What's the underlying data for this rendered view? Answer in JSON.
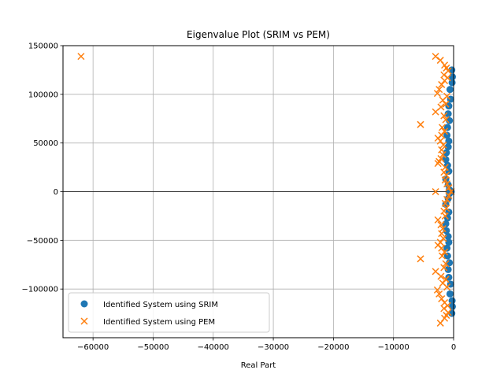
{
  "chart_data": {
    "type": "scatter",
    "title": "Eigenvalue Plot (SRIM vs PEM)",
    "xlabel": "Real Part",
    "ylabel": "",
    "xlim": [
      -65000,
      0
    ],
    "ylim": [
      -150000,
      150000
    ],
    "x_ticks": [
      -60000,
      -50000,
      -40000,
      -30000,
      -20000,
      -10000,
      0
    ],
    "y_ticks": [
      -100000,
      -50000,
      0,
      50000,
      100000,
      150000
    ],
    "x_tick_labels": [
      "−60000",
      "−50000",
      "−40000",
      "−30000",
      "−20000",
      "−10000",
      "0"
    ],
    "y_tick_labels": [
      "−100000",
      "−50000",
      "0",
      "50000",
      "100000",
      "150000"
    ],
    "grid": true,
    "zero_line": true,
    "legend_position": "bottom-left",
    "series": [
      {
        "name": "Identified System using SRIM",
        "marker": "circle",
        "color": "#1f77b4",
        "points": [
          [
            -300,
            125000
          ],
          [
            -300,
            -125000
          ],
          [
            -200,
            118000
          ],
          [
            -200,
            -118000
          ],
          [
            -250,
            112000
          ],
          [
            -250,
            -112000
          ],
          [
            -600,
            105000
          ],
          [
            -600,
            -105000
          ],
          [
            -500,
            95000
          ],
          [
            -500,
            -95000
          ],
          [
            -800,
            88000
          ],
          [
            -800,
            -88000
          ],
          [
            -900,
            80000
          ],
          [
            -900,
            -80000
          ],
          [
            -700,
            73000
          ],
          [
            -700,
            -73000
          ],
          [
            -1000,
            66000
          ],
          [
            -1000,
            -66000
          ],
          [
            -1100,
            58000
          ],
          [
            -1100,
            -58000
          ],
          [
            -800,
            52000
          ],
          [
            -800,
            -52000
          ],
          [
            -900,
            46000
          ],
          [
            -900,
            -46000
          ],
          [
            -1200,
            40000
          ],
          [
            -1200,
            -40000
          ],
          [
            -1300,
            33000
          ],
          [
            -1300,
            -33000
          ],
          [
            -1000,
            27000
          ],
          [
            -1000,
            -27000
          ],
          [
            -800,
            21000
          ],
          [
            -800,
            -21000
          ],
          [
            -1300,
            13000
          ],
          [
            -1300,
            -13000
          ],
          [
            -900,
            7000
          ],
          [
            -900,
            -7000
          ],
          [
            -700,
            2000
          ],
          [
            -700,
            -2000
          ],
          [
            -400,
            0
          ]
        ]
      },
      {
        "name": "Identified System using PEM",
        "marker": "x",
        "color": "#ff7f0e",
        "points": [
          [
            -62000,
            139000
          ],
          [
            -3000,
            139000
          ],
          [
            -2200,
            135000
          ],
          [
            -1500,
            130000
          ],
          [
            -1200,
            127000
          ],
          [
            -900,
            124000
          ],
          [
            -1600,
            120000
          ],
          [
            -1000,
            117000
          ],
          [
            -1500,
            114000
          ],
          [
            -2000,
            110000
          ],
          [
            -2400,
            105000
          ],
          [
            -2700,
            101000
          ],
          [
            -1100,
            98000
          ],
          [
            -1800,
            94000
          ],
          [
            -1300,
            90000
          ],
          [
            -2100,
            87000
          ],
          [
            -3000,
            82000
          ],
          [
            -1600,
            78000
          ],
          [
            -1300,
            74000
          ],
          [
            -5500,
            69000
          ],
          [
            -1900,
            66000
          ],
          [
            -1500,
            62000
          ],
          [
            -2000,
            58000
          ],
          [
            -2600,
            55000
          ],
          [
            -2200,
            52000
          ],
          [
            -1700,
            48000
          ],
          [
            -2000,
            43000
          ],
          [
            -1800,
            38000
          ],
          [
            -2100,
            34000
          ],
          [
            -2400,
            31000
          ],
          [
            -2600,
            29000
          ],
          [
            -1400,
            25000
          ],
          [
            -1600,
            20000
          ],
          [
            -1200,
            17000
          ],
          [
            -1400,
            12000
          ],
          [
            -1100,
            8000
          ],
          [
            -800,
            4000
          ],
          [
            -3000,
            0
          ],
          [
            -400,
            0
          ],
          [
            -2200,
            -135000
          ],
          [
            -1500,
            -130000
          ],
          [
            -1200,
            -127000
          ],
          [
            -900,
            -124000
          ],
          [
            -1600,
            -120000
          ],
          [
            -1000,
            -117000
          ],
          [
            -1500,
            -114000
          ],
          [
            -2000,
            -110000
          ],
          [
            -2400,
            -105000
          ],
          [
            -2700,
            -101000
          ],
          [
            -1100,
            -98000
          ],
          [
            -1800,
            -94000
          ],
          [
            -1300,
            -90000
          ],
          [
            -2100,
            -87000
          ],
          [
            -3000,
            -82000
          ],
          [
            -1600,
            -78000
          ],
          [
            -1300,
            -74000
          ],
          [
            -5500,
            -69000
          ],
          [
            -1900,
            -66000
          ],
          [
            -1500,
            -62000
          ],
          [
            -2000,
            -58000
          ],
          [
            -2600,
            -55000
          ],
          [
            -2200,
            -52000
          ],
          [
            -1700,
            -48000
          ],
          [
            -2000,
            -43000
          ],
          [
            -1800,
            -38000
          ],
          [
            -2100,
            -34000
          ],
          [
            -2600,
            -29000
          ],
          [
            -1400,
            -25000
          ],
          [
            -1600,
            -20000
          ],
          [
            -1200,
            -17000
          ],
          [
            -1400,
            -12000
          ],
          [
            -1100,
            -8000
          ],
          [
            -800,
            -4000
          ]
        ]
      }
    ]
  }
}
